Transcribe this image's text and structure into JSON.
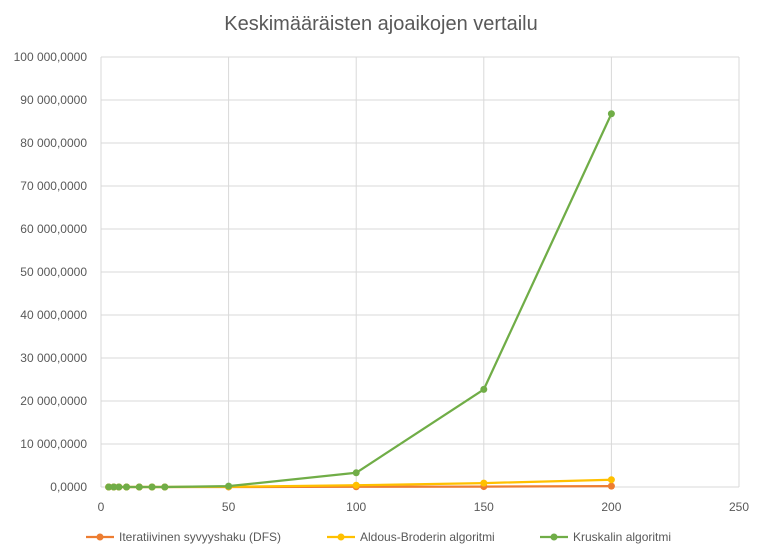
{
  "chart_data": {
    "type": "scatter",
    "title": "Keskimääräisten ajoaikojen vertailu",
    "xlim": [
      0,
      250
    ],
    "ylim": [
      0,
      100000000
    ],
    "x_ticks": [
      0,
      50,
      100,
      150,
      200,
      250
    ],
    "x_tick_labels": [
      "0",
      "50",
      "100",
      "150",
      "200",
      "250"
    ],
    "y_ticks": [
      0,
      10000000,
      20000000,
      30000000,
      40000000,
      50000000,
      60000000,
      70000000,
      80000000,
      90000000,
      100000000
    ],
    "y_tick_labels": [
      "0,0000",
      "10 000,0000",
      "20 000,0000",
      "30 000,0000",
      "40 000,0000",
      "50 000,0000",
      "60 000,0000",
      "70 000,0000",
      "80 000,0000",
      "90 000,0000",
      "100 000,0000"
    ],
    "grid": true,
    "legend_position": "bottom",
    "series": [
      {
        "name": "Iteratiivinen syvyyshaku (DFS)",
        "color": "#ed7d31",
        "points": [
          [
            3,
            0
          ],
          [
            5,
            0
          ],
          [
            7,
            0
          ],
          [
            10,
            0
          ],
          [
            15,
            0
          ],
          [
            20,
            0
          ],
          [
            25,
            0
          ],
          [
            50,
            10000
          ],
          [
            100,
            50000
          ],
          [
            150,
            100000
          ],
          [
            200,
            200000
          ]
        ]
      },
      {
        "name": "Aldous-Broderin algoritmi",
        "color": "#ffc000",
        "points": [
          [
            3,
            0
          ],
          [
            5,
            0
          ],
          [
            7,
            0
          ],
          [
            10,
            0
          ],
          [
            15,
            0
          ],
          [
            20,
            0
          ],
          [
            25,
            0
          ],
          [
            50,
            50000
          ],
          [
            100,
            400000
          ],
          [
            150,
            900000
          ],
          [
            200,
            1700000
          ]
        ]
      },
      {
        "name": "Kruskalin algoritmi",
        "color": "#70ad47",
        "points": [
          [
            3,
            0
          ],
          [
            5,
            0
          ],
          [
            7,
            0
          ],
          [
            10,
            0
          ],
          [
            15,
            0
          ],
          [
            20,
            0
          ],
          [
            25,
            0
          ],
          [
            50,
            200000
          ],
          [
            100,
            3300000
          ],
          [
            150,
            22700000
          ],
          [
            200,
            86800000
          ]
        ]
      }
    ]
  }
}
